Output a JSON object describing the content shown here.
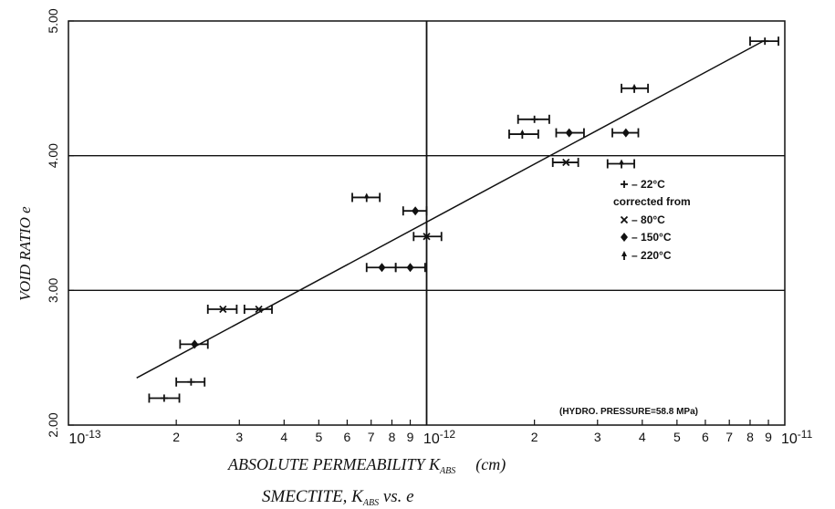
{
  "chart_data": {
    "type": "scatter",
    "title": "SMECTITE, K",
    "title_sub": "ABS",
    "title_tail": " vs. e",
    "xlabel": "ABSOLUTE PERMEABILITY K",
    "xlabel_sub": "ABS",
    "xlabel_unit": "(cm)",
    "ylabel": "VOID RATIO e",
    "x_scale": "log",
    "xlim": [
      1e-13,
      1e-11
    ],
    "ylim": [
      2.0,
      5.0
    ],
    "x_tick_labels": [
      {
        "v": 2e-13,
        "t": "2"
      },
      {
        "v": 3e-13,
        "t": "3"
      },
      {
        "v": 4e-13,
        "t": "4"
      },
      {
        "v": 5e-13,
        "t": "5"
      },
      {
        "v": 6e-13,
        "t": "6"
      },
      {
        "v": 7e-13,
        "t": "7"
      },
      {
        "v": 8e-13,
        "t": "8"
      },
      {
        "v": 9e-13,
        "t": "9"
      },
      {
        "v": 2e-12,
        "t": "2"
      },
      {
        "v": 3e-12,
        "t": "3"
      },
      {
        "v": 4e-12,
        "t": "4"
      },
      {
        "v": 5e-12,
        "t": "5"
      },
      {
        "v": 6e-12,
        "t": "6"
      },
      {
        "v": 7e-12,
        "t": "7"
      },
      {
        "v": 8e-12,
        "t": "8"
      },
      {
        "v": 9e-12,
        "t": "9"
      }
    ],
    "x_decade_labels": [
      {
        "v": 1e-13,
        "base": "10",
        "exp": "-13"
      },
      {
        "v": 1e-12,
        "base": "10",
        "exp": "-12"
      },
      {
        "v": 1e-11,
        "base": "10",
        "exp": "-11"
      }
    ],
    "y_ticks": [
      {
        "v": 2.0,
        "t": "2.00"
      },
      {
        "v": 3.0,
        "t": "3.00"
      },
      {
        "v": 4.0,
        "t": "4.00"
      },
      {
        "v": 5.0,
        "t": "5.00"
      }
    ],
    "grid_major": {
      "x": [
        1e-12
      ],
      "y": [
        3.0,
        4.0
      ]
    },
    "fit_line": {
      "x": [
        1.55e-13,
        8.7e-12
      ],
      "y": [
        2.35,
        4.85
      ]
    },
    "series": [
      {
        "name": "22°C",
        "marker": "plus",
        "points": [
          {
            "x": 8.8e-12,
            "y": 4.85,
            "xerr": [
              8e-12,
              9.6e-12
            ]
          },
          {
            "x": 2e-12,
            "y": 4.27,
            "xerr": [
              1.8e-12,
              2.2e-12
            ]
          },
          {
            "x": 2.2e-13,
            "y": 2.32,
            "xerr": [
              2e-13,
              2.4e-13
            ]
          },
          {
            "x": 1.85e-13,
            "y": 2.2,
            "xerr": [
              1.68e-13,
              2.04e-13
            ]
          }
        ]
      },
      {
        "name": "80°C",
        "marker": "x",
        "points": [
          {
            "x": 2.45e-12,
            "y": 3.95,
            "xerr": [
              2.25e-12,
              2.65e-12
            ]
          },
          {
            "x": 1e-12,
            "y": 3.4,
            "xerr": [
              9.2e-13,
              1.1e-12
            ]
          },
          {
            "x": 2.7e-13,
            "y": 2.86,
            "xerr": [
              2.45e-13,
              2.95e-13
            ]
          },
          {
            "x": 3.4e-13,
            "y": 2.86,
            "xerr": [
              3.1e-13,
              3.7e-13
            ]
          }
        ]
      },
      {
        "name": "150°C",
        "marker": "diamond",
        "points": [
          {
            "x": 2.5e-12,
            "y": 4.17,
            "xerr": [
              2.3e-12,
              2.75e-12
            ]
          },
          {
            "x": 3.6e-12,
            "y": 4.17,
            "xerr": [
              3.3e-12,
              3.9e-12
            ]
          },
          {
            "x": 9.3e-13,
            "y": 3.59,
            "xerr": [
              8.6e-13,
              1e-12
            ]
          },
          {
            "x": 7.5e-13,
            "y": 3.17,
            "xerr": [
              6.8e-13,
              8.2e-13
            ]
          },
          {
            "x": 9e-13,
            "y": 3.17,
            "xerr": [
              8.2e-13,
              9.9e-13
            ]
          },
          {
            "x": 2.25e-13,
            "y": 2.6,
            "xerr": [
              2.05e-13,
              2.45e-13
            ]
          }
        ]
      },
      {
        "name": "220°C",
        "marker": "cross",
        "points": [
          {
            "x": 3.8e-12,
            "y": 4.5,
            "xerr": [
              3.5e-12,
              4.15e-12
            ]
          },
          {
            "x": 1.85e-12,
            "y": 4.16,
            "xerr": [
              1.7e-12,
              2.05e-12
            ]
          },
          {
            "x": 3.5e-12,
            "y": 3.94,
            "xerr": [
              3.2e-12,
              3.8e-12
            ]
          },
          {
            "x": 6.8e-13,
            "y": 3.69,
            "xerr": [
              6.2e-13,
              7.4e-13
            ]
          }
        ]
      }
    ],
    "legend": {
      "location": "right",
      "entries": [
        {
          "marker": "plus",
          "label": "22°C"
        },
        {
          "marker": "none",
          "label": "corrected from"
        },
        {
          "marker": "x",
          "label": "80°C"
        },
        {
          "marker": "diamond",
          "label": "150°C"
        },
        {
          "marker": "cross",
          "label": "220°C"
        }
      ]
    },
    "annotation": "(HYDRO. PRESSURE=58.8 MPa)"
  }
}
